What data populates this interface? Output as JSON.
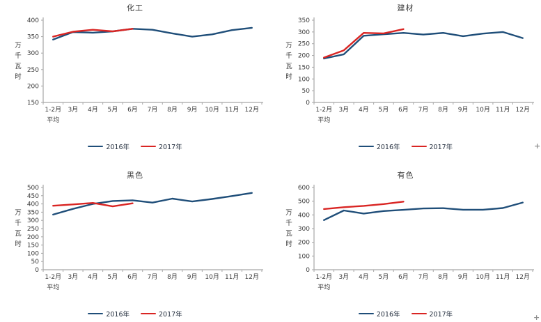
{
  "colors": {
    "series_2016": "#1F4E79",
    "series_2017": "#D92523",
    "axis": "#A6A6A6",
    "label_text": "#3A3A3A"
  },
  "artifacts": {
    "plus_mark_1": "+",
    "plus_mark_2": "+"
  },
  "chart_data": [
    {
      "type": "line",
      "title": "化工",
      "ylabel": "万千瓦时",
      "categories": [
        [
          "1-2月",
          "平均"
        ],
        [
          "3月"
        ],
        [
          "4月"
        ],
        [
          "5月"
        ],
        [
          "6月"
        ],
        [
          "7月"
        ],
        [
          "8月"
        ],
        [
          "9月"
        ],
        [
          "10月"
        ],
        [
          "11月"
        ],
        [
          "12月"
        ]
      ],
      "ylim": [
        150,
        400
      ],
      "ystep": 50,
      "grid": false,
      "legend_position": "bottom",
      "series": [
        {
          "name": "2016年",
          "color": "#1F4E79",
          "values": [
            341,
            364,
            362,
            366,
            374,
            371,
            360,
            350,
            357,
            370,
            377
          ]
        },
        {
          "name": "2017年",
          "color": "#D92523",
          "values": [
            350,
            365,
            371,
            366,
            374
          ]
        }
      ]
    },
    {
      "type": "line",
      "title": "建材",
      "ylabel": "万千瓦时",
      "categories": [
        [
          "1-2月",
          "平均"
        ],
        [
          "3月"
        ],
        [
          "4月"
        ],
        [
          "5月"
        ],
        [
          "6月"
        ],
        [
          "7月"
        ],
        [
          "8月"
        ],
        [
          "9月"
        ],
        [
          "10月"
        ],
        [
          "11月"
        ],
        [
          "12月"
        ]
      ],
      "ylim": [
        0,
        350
      ],
      "ystep": 50,
      "grid": false,
      "legend_position": "bottom",
      "series": [
        {
          "name": "2016年",
          "color": "#1F4E79",
          "values": [
            187,
            205,
            284,
            290,
            296,
            289,
            296,
            282,
            293,
            300,
            274
          ]
        },
        {
          "name": "2017年",
          "color": "#D92523",
          "values": [
            191,
            222,
            296,
            294,
            312
          ]
        }
      ]
    },
    {
      "type": "line",
      "title": "黑色",
      "ylabel": "万千瓦时",
      "categories": [
        [
          "1-2月",
          "平均"
        ],
        [
          "3月"
        ],
        [
          "4月"
        ],
        [
          "5月"
        ],
        [
          "6月"
        ],
        [
          "7月"
        ],
        [
          "8月"
        ],
        [
          "9月"
        ],
        [
          "10月"
        ],
        [
          "11月"
        ],
        [
          "12月"
        ]
      ],
      "ylim": [
        0,
        500
      ],
      "ystep": 50,
      "grid": false,
      "legend_position": "bottom",
      "series": [
        {
          "name": "2016年",
          "color": "#1F4E79",
          "values": [
            335,
            370,
            400,
            418,
            422,
            408,
            432,
            415,
            430,
            448,
            467
          ]
        },
        {
          "name": "2017年",
          "color": "#D92523",
          "values": [
            389,
            397,
            406,
            385,
            404
          ]
        }
      ]
    },
    {
      "type": "line",
      "title": "有色",
      "ylabel": "万千瓦时",
      "categories": [
        [
          "1-2月",
          "平均"
        ],
        [
          "3月"
        ],
        [
          "4月"
        ],
        [
          "5月"
        ],
        [
          "6月"
        ],
        [
          "7月"
        ],
        [
          "8月"
        ],
        [
          "9月"
        ],
        [
          "10月"
        ],
        [
          "11月"
        ],
        [
          "12月"
        ]
      ],
      "ylim": [
        0,
        600
      ],
      "ystep": 100,
      "grid": false,
      "legend_position": "bottom",
      "series": [
        {
          "name": "2016年",
          "color": "#1F4E79",
          "values": [
            362,
            432,
            410,
            428,
            437,
            447,
            449,
            438,
            438,
            450,
            490
          ]
        },
        {
          "name": "2017年",
          "color": "#D92523",
          "values": [
            443,
            456,
            466,
            479,
            497
          ]
        }
      ]
    }
  ]
}
